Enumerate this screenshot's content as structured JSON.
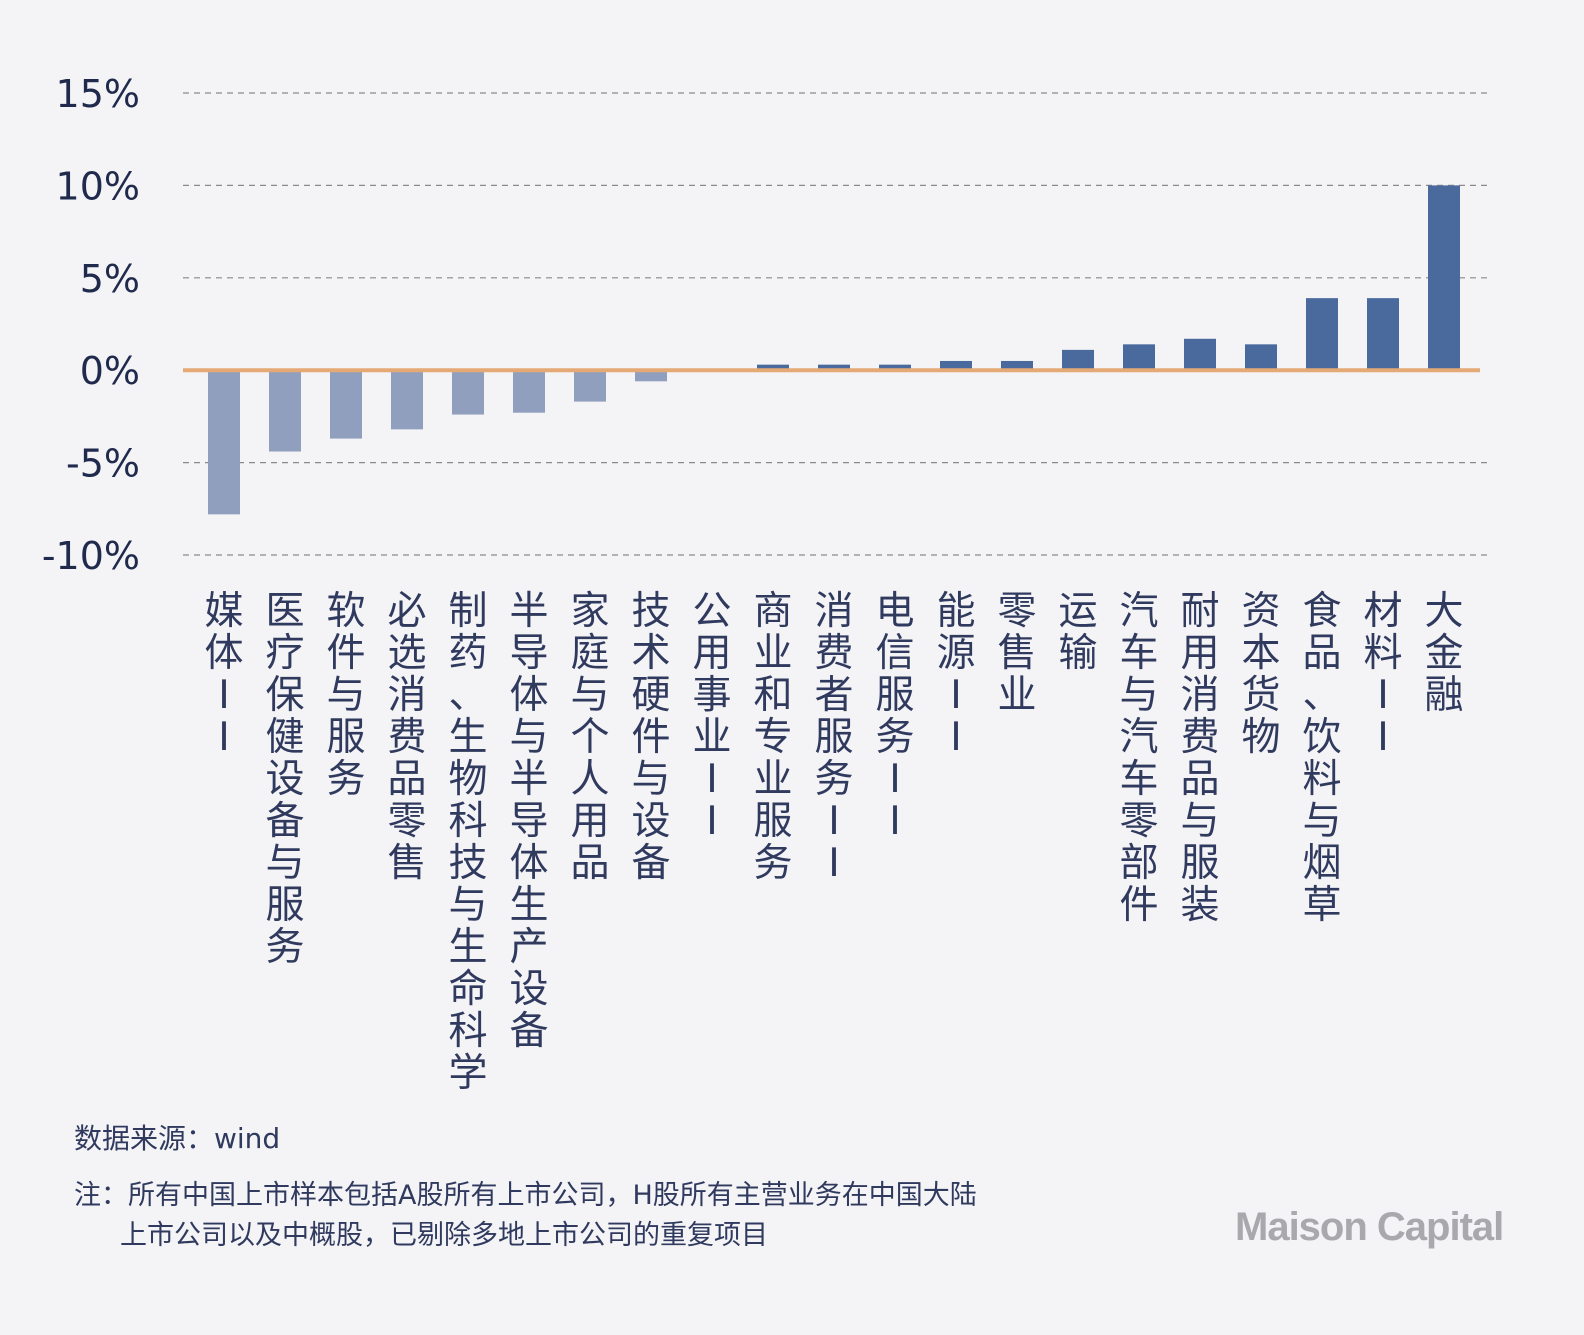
{
  "chart_data": {
    "type": "bar",
    "title": "",
    "xlabel": "",
    "ylabel": "",
    "ylim": [
      -10,
      15
    ],
    "yticks": [
      15,
      10,
      5,
      0,
      -5,
      -10
    ],
    "ytick_labels": [
      "15%",
      "10%",
      "5%",
      "0%",
      "-5%",
      "-10%"
    ],
    "grid": true,
    "categories": [
      "媒体II",
      "医疗保健设备与服务",
      "软件与服务",
      "必选消费品零售",
      "制药、生物科技与生命科学",
      "半导体与半导体生产设备",
      "家庭与个人用品",
      "技术硬件与设备",
      "公用事业II",
      "商业和专业服务",
      "消费者服务II",
      "电信服务II",
      "能源II",
      "零售业",
      "运输",
      "汽车与汽车零部件",
      "耐用消费品与服装",
      "资本货物",
      "食品、饮料与烟草",
      "材料II",
      "大金融"
    ],
    "values": [
      -7.8,
      -4.4,
      -3.7,
      -3.2,
      -2.4,
      -2.3,
      -1.7,
      -0.6,
      0.0,
      0.3,
      0.3,
      0.3,
      0.5,
      0.5,
      1.1,
      1.4,
      1.7,
      1.4,
      3.9,
      3.9,
      10.0
    ],
    "colors": {
      "negative": "#909fbd",
      "positive": "#4a6a9e",
      "zero_line": "#e5a975",
      "grid": "#8a8a8a"
    }
  },
  "footer": {
    "source": "数据来源：wind",
    "note_line1": "注：所有中国上市样本包括A股所有上市公司，H股所有主营业务在中国大陆",
    "note_line2": "上市公司以及中概股，已剔除多地上市公司的重复项目"
  },
  "logo": {
    "text": "Maison Capital"
  }
}
